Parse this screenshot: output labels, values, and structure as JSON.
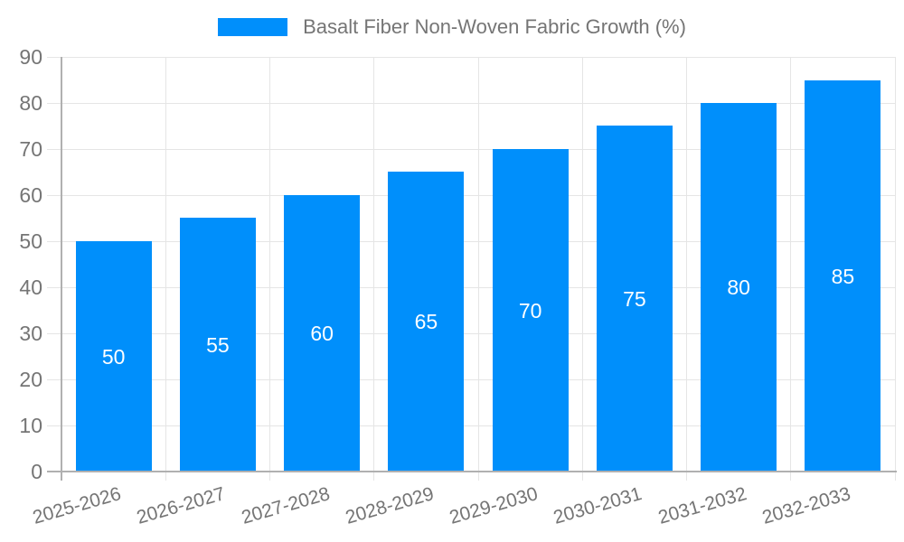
{
  "legend": {
    "position": "top"
  },
  "chart_data": {
    "type": "bar",
    "title": "",
    "series_name": "Basalt Fiber Non-Woven Fabric Growth (%)",
    "categories": [
      "2025-2026",
      "2026-2027",
      "2027-2028",
      "2028-2029",
      "2029-2030",
      "2030-2031",
      "2031-2032",
      "2032-2033"
    ],
    "values": [
      50,
      55,
      60,
      65,
      70,
      75,
      80,
      85
    ],
    "bar_labels": [
      50,
      55,
      60,
      65,
      70,
      75,
      80,
      85
    ],
    "xlabel": "",
    "ylabel": "",
    "ylim": [
      0,
      90
    ],
    "ytick_step": 10,
    "ytick_labels": [
      "0",
      "10",
      "20",
      "30",
      "40",
      "50",
      "60",
      "70",
      "80",
      "90"
    ],
    "grid": true,
    "legend_position": "top",
    "bar_label_position": "inside-center",
    "colors": {
      "bar": "#008ffb",
      "bar_label": "#ffffff",
      "axis_label": "#757575",
      "grid_line": "#e5e5e5",
      "axis_line": "#b0b0b0"
    }
  }
}
